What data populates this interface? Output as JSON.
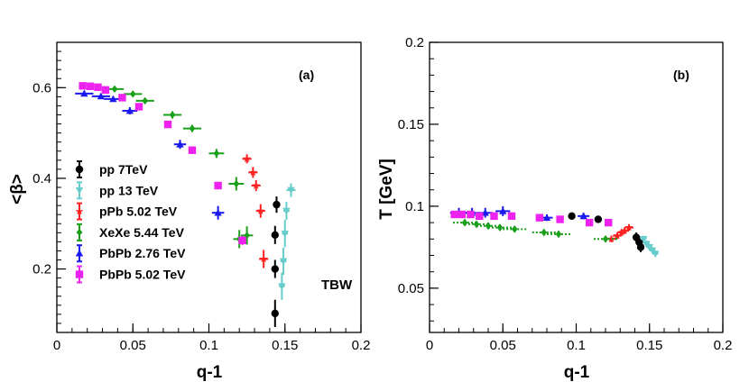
{
  "chart_data": [
    {
      "type": "scatter",
      "panel_label": "(a)",
      "annotation": "TBW",
      "xlabel": "q-1",
      "ylabel": "<β>",
      "xlim": [
        0,
        0.2
      ],
      "ylim": [
        0.06,
        0.7
      ],
      "xticks": [
        "0",
        "0.05",
        "0.1",
        "0.15",
        "0.2"
      ],
      "yticks": [
        "0.2",
        "0.4",
        "0.6"
      ],
      "legend_position": "left",
      "series": [
        {
          "name": "pp 7TeV",
          "color": "#000000",
          "marker": "circle",
          "points": [
            {
              "x": 0.1435,
              "y": 0.102,
              "ex": 0.001,
              "ey": 0.03
            },
            {
              "x": 0.1435,
              "y": 0.2,
              "ex": 0.002,
              "ey": 0.02
            },
            {
              "x": 0.1435,
              "y": 0.275,
              "ex": 0.002,
              "ey": 0.02
            },
            {
              "x": 0.1445,
              "y": 0.342,
              "ex": 0.002,
              "ey": 0.018
            }
          ]
        },
        {
          "name": "pp 13 TeV",
          "color": "#66cccc",
          "marker": "triangle-down",
          "points": [
            {
              "x": 0.148,
              "y": 0.162,
              "ex": 0.002,
              "ey": 0.03
            },
            {
              "x": 0.149,
              "y": 0.217,
              "ex": 0.002,
              "ey": 0.03
            },
            {
              "x": 0.15,
              "y": 0.278,
              "ex": 0.002,
              "ey": 0.03
            },
            {
              "x": 0.151,
              "y": 0.328,
              "ex": 0.002,
              "ey": 0.02
            },
            {
              "x": 0.154,
              "y": 0.374,
              "ex": 0.003,
              "ey": 0.015
            }
          ]
        },
        {
          "name": "pPb 5.02 TeV",
          "color": "#ff2020",
          "marker": "star",
          "points": [
            {
              "x": 0.136,
              "y": 0.222,
              "ex": 0.003,
              "ey": 0.02
            },
            {
              "x": 0.134,
              "y": 0.328,
              "ex": 0.003,
              "ey": 0.015
            },
            {
              "x": 0.131,
              "y": 0.384,
              "ex": 0.003,
              "ey": 0.012
            },
            {
              "x": 0.129,
              "y": 0.413,
              "ex": 0.003,
              "ey": 0.012
            },
            {
              "x": 0.125,
              "y": 0.443,
              "ex": 0.003,
              "ey": 0.01
            }
          ]
        },
        {
          "name": "XeXe 5.44 TeV",
          "color": "#1aa01a",
          "marker": "diamond",
          "points": [
            {
              "x": 0.12,
              "y": 0.266,
              "ex": 0.004,
              "ey": 0.02
            },
            {
              "x": 0.125,
              "y": 0.274,
              "ex": 0.004,
              "ey": 0.02
            },
            {
              "x": 0.118,
              "y": 0.388,
              "ex": 0.005,
              "ey": 0.015
            },
            {
              "x": 0.105,
              "y": 0.455,
              "ex": 0.005,
              "ey": 0.01
            },
            {
              "x": 0.089,
              "y": 0.51,
              "ex": 0.006,
              "ey": 0.008
            },
            {
              "x": 0.076,
              "y": 0.54,
              "ex": 0.006,
              "ey": 0.008
            },
            {
              "x": 0.058,
              "y": 0.571,
              "ex": 0.006,
              "ey": 0.006
            },
            {
              "x": 0.05,
              "y": 0.586,
              "ex": 0.006,
              "ey": 0.006
            },
            {
              "x": 0.038,
              "y": 0.597,
              "ex": 0.006,
              "ey": 0.006
            }
          ]
        },
        {
          "name": "PbPb 2.76 TeV",
          "color": "#1a1aee",
          "marker": "triangle-up",
          "points": [
            {
              "x": 0.106,
              "y": 0.324,
              "ex": 0.004,
              "ey": 0.015
            },
            {
              "x": 0.081,
              "y": 0.475,
              "ex": 0.004,
              "ey": 0.01
            },
            {
              "x": 0.048,
              "y": 0.549,
              "ex": 0.005,
              "ey": 0.008
            },
            {
              "x": 0.037,
              "y": 0.575,
              "ex": 0.006,
              "ey": 0.006
            },
            {
              "x": 0.029,
              "y": 0.581,
              "ex": 0.006,
              "ey": 0.006
            },
            {
              "x": 0.018,
              "y": 0.587,
              "ex": 0.006,
              "ey": 0.006
            }
          ]
        },
        {
          "name": "PbPb 5.02 TeV",
          "color": "#ee22ee",
          "marker": "square",
          "points": [
            {
              "x": 0.122,
              "y": 0.263,
              "ex": 0.002,
              "ey": 0.01
            },
            {
              "x": 0.106,
              "y": 0.384,
              "ex": 0.002,
              "ey": 0.008
            },
            {
              "x": 0.089,
              "y": 0.462,
              "ex": 0.002,
              "ey": 0.006
            },
            {
              "x": 0.073,
              "y": 0.519,
              "ex": 0.002,
              "ey": 0.006
            },
            {
              "x": 0.054,
              "y": 0.558,
              "ex": 0.002,
              "ey": 0.006
            },
            {
              "x": 0.043,
              "y": 0.578,
              "ex": 0.002,
              "ey": 0.005
            },
            {
              "x": 0.032,
              "y": 0.595,
              "ex": 0.002,
              "ey": 0.005
            },
            {
              "x": 0.027,
              "y": 0.601,
              "ex": 0.002,
              "ey": 0.005
            },
            {
              "x": 0.022,
              "y": 0.603,
              "ex": 0.002,
              "ey": 0.005
            },
            {
              "x": 0.017,
              "y": 0.604,
              "ex": 0.002,
              "ey": 0.005
            }
          ]
        }
      ]
    },
    {
      "type": "scatter",
      "panel_label": "(b)",
      "xlabel": "q-1",
      "ylabel": "T [GeV]",
      "xlim": [
        0,
        0.2
      ],
      "ylim": [
        0.023,
        0.2
      ],
      "xticks": [
        "0",
        "0.05",
        "0.1",
        "0.15",
        "0.2"
      ],
      "yticks": [
        "0.05",
        "0.1",
        "0.15",
        "0.2"
      ],
      "series": [
        {
          "name": "pp 7TeV",
          "color": "#000000",
          "marker": "circle",
          "points": [
            {
              "x": 0.097,
              "y": 0.094,
              "ex": 0.001,
              "ey": 0.002
            },
            {
              "x": 0.115,
              "y": 0.092,
              "ex": 0.001,
              "ey": 0.002
            },
            {
              "x": 0.141,
              "y": 0.081,
              "ex": 0.002,
              "ey": 0.003
            },
            {
              "x": 0.143,
              "y": 0.078,
              "ex": 0.002,
              "ey": 0.003
            },
            {
              "x": 0.144,
              "y": 0.075,
              "ex": 0.002,
              "ey": 0.003
            }
          ]
        },
        {
          "name": "pp 13 TeV",
          "color": "#66cccc",
          "marker": "triangle-down",
          "points": [
            {
              "x": 0.146,
              "y": 0.08,
              "ex": 0.002,
              "ey": 0.002
            },
            {
              "x": 0.148,
              "y": 0.077,
              "ex": 0.002,
              "ey": 0.002
            },
            {
              "x": 0.15,
              "y": 0.075,
              "ex": 0.002,
              "ey": 0.002
            },
            {
              "x": 0.152,
              "y": 0.073,
              "ex": 0.002,
              "ey": 0.002
            },
            {
              "x": 0.154,
              "y": 0.071,
              "ex": 0.002,
              "ey": 0.002
            }
          ]
        },
        {
          "name": "pPb 5.02 TeV",
          "color": "#ff2020",
          "marker": "star",
          "points": [
            {
              "x": 0.124,
              "y": 0.08,
              "ex": 0.003,
              "ey": 0.002
            },
            {
              "x": 0.128,
              "y": 0.082,
              "ex": 0.003,
              "ey": 0.002
            },
            {
              "x": 0.131,
              "y": 0.084,
              "ex": 0.003,
              "ey": 0.002
            },
            {
              "x": 0.133,
              "y": 0.085,
              "ex": 0.003,
              "ey": 0.002
            },
            {
              "x": 0.136,
              "y": 0.087,
              "ex": 0.003,
              "ey": 0.002
            }
          ]
        },
        {
          "name": "XeXe 5.44 TeV",
          "color": "#1aa01a",
          "marker": "diamond",
          "points": [
            {
              "x": 0.12,
              "y": 0.08,
              "ex": 0.008,
              "ey": 0.002
            },
            {
              "x": 0.088,
              "y": 0.083,
              "ex": 0.008,
              "ey": 0.002
            },
            {
              "x": 0.078,
              "y": 0.084,
              "ex": 0.008,
              "ey": 0.002
            },
            {
              "x": 0.058,
              "y": 0.086,
              "ex": 0.008,
              "ey": 0.002
            },
            {
              "x": 0.048,
              "y": 0.087,
              "ex": 0.008,
              "ey": 0.002
            },
            {
              "x": 0.04,
              "y": 0.088,
              "ex": 0.008,
              "ey": 0.002
            },
            {
              "x": 0.032,
              "y": 0.089,
              "ex": 0.008,
              "ey": 0.002
            },
            {
              "x": 0.024,
              "y": 0.09,
              "ex": 0.008,
              "ey": 0.002
            }
          ]
        },
        {
          "name": "PbPb 2.76 TeV",
          "color": "#1a1aee",
          "marker": "triangle-up",
          "points": [
            {
              "x": 0.105,
              "y": 0.094,
              "ex": 0.004,
              "ey": 0.002
            },
            {
              "x": 0.08,
              "y": 0.093,
              "ex": 0.004,
              "ey": 0.002
            },
            {
              "x": 0.05,
              "y": 0.097,
              "ex": 0.005,
              "ey": 0.003
            },
            {
              "x": 0.038,
              "y": 0.096,
              "ex": 0.005,
              "ey": 0.003
            },
            {
              "x": 0.029,
              "y": 0.096,
              "ex": 0.005,
              "ey": 0.003
            },
            {
              "x": 0.02,
              "y": 0.096,
              "ex": 0.006,
              "ey": 0.003
            }
          ]
        },
        {
          "name": "PbPb 5.02 TeV",
          "color": "#ee22ee",
          "marker": "square",
          "points": [
            {
              "x": 0.122,
              "y": 0.09,
              "ex": 0.002,
              "ey": 0.002
            },
            {
              "x": 0.109,
              "y": 0.09,
              "ex": 0.002,
              "ey": 0.002
            },
            {
              "x": 0.089,
              "y": 0.092,
              "ex": 0.002,
              "ey": 0.002
            },
            {
              "x": 0.075,
              "y": 0.093,
              "ex": 0.002,
              "ey": 0.002
            },
            {
              "x": 0.056,
              "y": 0.094,
              "ex": 0.002,
              "ey": 0.002
            },
            {
              "x": 0.044,
              "y": 0.094,
              "ex": 0.002,
              "ey": 0.002
            },
            {
              "x": 0.034,
              "y": 0.094,
              "ex": 0.002,
              "ey": 0.002
            },
            {
              "x": 0.028,
              "y": 0.095,
              "ex": 0.002,
              "ey": 0.002
            },
            {
              "x": 0.022,
              "y": 0.095,
              "ex": 0.002,
              "ey": 0.002
            },
            {
              "x": 0.017,
              "y": 0.095,
              "ex": 0.002,
              "ey": 0.002
            }
          ]
        }
      ]
    }
  ]
}
